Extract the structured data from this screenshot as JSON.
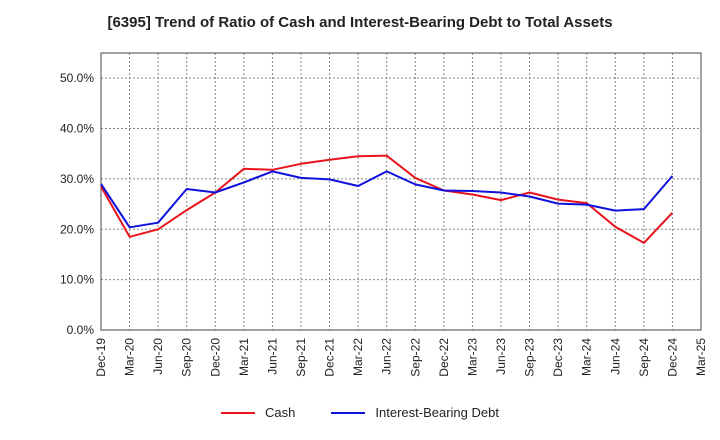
{
  "title": "[6395]  Trend of Ratio of Cash and Interest-Bearing Debt to Total Assets",
  "chart_data": {
    "type": "line",
    "title": "[6395]  Trend of Ratio of Cash and Interest-Bearing Debt to Total Assets",
    "xlabel": "",
    "ylabel": "",
    "ylim": [
      0,
      55
    ],
    "y_ticks": [
      0,
      10,
      20,
      30,
      40,
      50
    ],
    "y_tick_labels": [
      "0.0%",
      "10.0%",
      "20.0%",
      "30.0%",
      "40.0%",
      "50.0%"
    ],
    "categories": [
      "Dec-19",
      "Mar-20",
      "Jun-20",
      "Sep-20",
      "Dec-20",
      "Mar-21",
      "Jun-21",
      "Sep-21",
      "Dec-21",
      "Mar-22",
      "Jun-22",
      "Sep-22",
      "Dec-22",
      "Mar-23",
      "Jun-23",
      "Sep-23",
      "Dec-23",
      "Mar-24",
      "Jun-24",
      "Sep-24",
      "Dec-24",
      "Mar-25"
    ],
    "x_tick_labels": [
      "Dec-19",
      "Mar-20",
      "Jun-20",
      "Sep-20",
      "Dec-20",
      "Mar-21",
      "Jun-21",
      "Sep-21",
      "Dec-21",
      "Mar-22",
      "Jun-22",
      "Sep-22",
      "Dec-22",
      "Mar-23",
      "Jun-23",
      "Sep-23",
      "Dec-23",
      "Mar-24",
      "Jun-24",
      "Sep-24",
      "Dec-24",
      "Mar-25"
    ],
    "grid": true,
    "legend_position": "bottom",
    "series": [
      {
        "name": "Cash",
        "color": "#e8141c",
        "values": [
          28.5,
          18.5,
          20.0,
          23.8,
          27.3,
          32.0,
          31.8,
          33.0,
          33.8,
          34.5,
          34.6,
          30.2,
          27.7,
          26.9,
          25.8,
          27.3,
          25.9,
          25.2,
          20.5,
          17.3,
          23.3,
          null
        ]
      },
      {
        "name": "Interest-Bearing Debt",
        "color": "#1111dd",
        "values": [
          29.0,
          20.4,
          21.3,
          28.0,
          27.3,
          29.3,
          31.5,
          30.2,
          29.9,
          28.6,
          31.5,
          28.9,
          27.7,
          27.6,
          27.3,
          26.5,
          25.1,
          24.9,
          23.7,
          24.0,
          30.6,
          null
        ]
      }
    ]
  }
}
